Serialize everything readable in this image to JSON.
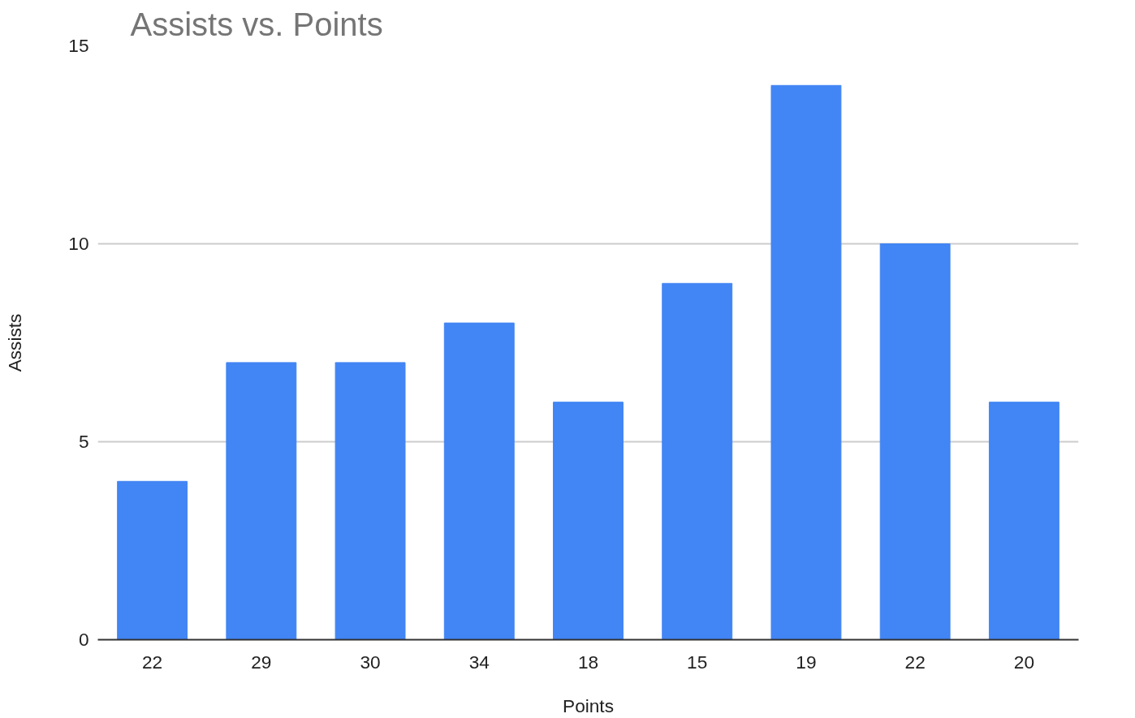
{
  "chart_data": {
    "type": "bar",
    "title": "Assists vs. Points",
    "xlabel": "Points",
    "ylabel": "Assists",
    "categories": [
      "22",
      "29",
      "30",
      "34",
      "18",
      "15",
      "19",
      "22",
      "20"
    ],
    "values": [
      4,
      7,
      7,
      8,
      6,
      9,
      14,
      10,
      6
    ],
    "color": "#4285f4",
    "ylim": [
      0,
      15
    ],
    "yticks": [
      0,
      5,
      10,
      15
    ],
    "grid": "y"
  }
}
